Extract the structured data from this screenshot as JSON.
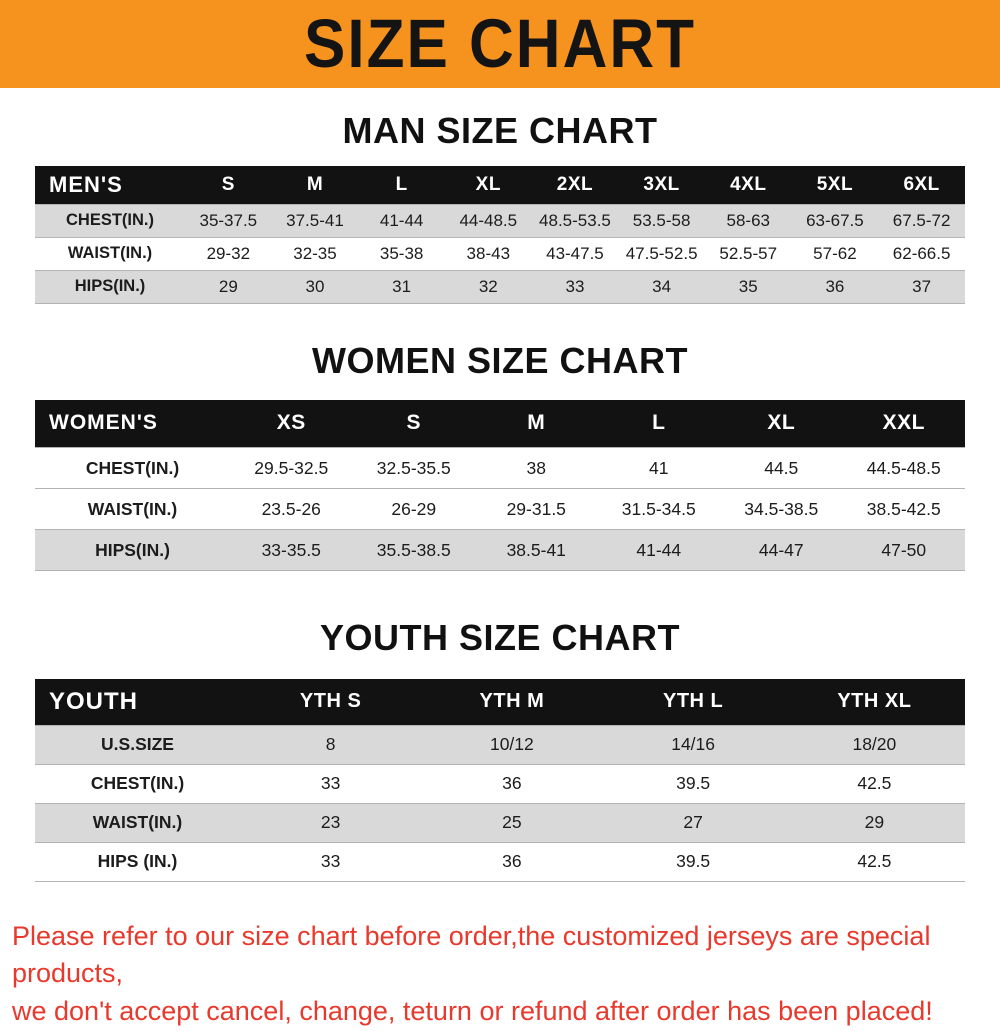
{
  "banner": {
    "title": "SIZE CHART"
  },
  "colors": {
    "banner_bg": "#f6921e",
    "table_header_bg": "#121212",
    "table_header_text": "#ffffff",
    "shaded_row_bg": "#d9d9d9",
    "footer_text": "#e8392c"
  },
  "sections": [
    {
      "id": "men",
      "heading": "MAN SIZE CHART",
      "header_row": [
        "MEN'S",
        "S",
        "M",
        "L",
        "XL",
        "2XL",
        "3XL",
        "4XL",
        "5XL",
        "6XL"
      ],
      "rows": [
        {
          "label": "CHEST(IN.)",
          "shade": true,
          "values": [
            "35-37.5",
            "37.5-41",
            "41-44",
            "44-48.5",
            "48.5-53.5",
            "53.5-58",
            "58-63",
            "63-67.5",
            "67.5-72"
          ]
        },
        {
          "label": "WAIST(IN.)",
          "shade": false,
          "values": [
            "29-32",
            "32-35",
            "35-38",
            "38-43",
            "43-47.5",
            "47.5-52.5",
            "52.5-57",
            "57-62",
            "62-66.5"
          ]
        },
        {
          "label": "HIPS(IN.)",
          "shade": true,
          "values": [
            "29",
            "30",
            "31",
            "32",
            "33",
            "34",
            "35",
            "36",
            "37"
          ]
        }
      ]
    },
    {
      "id": "women",
      "heading": "WOMEN SIZE CHART",
      "header_row": [
        "WOMEN'S",
        "XS",
        "S",
        "M",
        "L",
        "XL",
        "XXL"
      ],
      "rows": [
        {
          "label": "CHEST(IN.)",
          "shade": false,
          "values": [
            "29.5-32.5",
            "32.5-35.5",
            "38",
            "41",
            "44.5",
            "44.5-48.5"
          ]
        },
        {
          "label": "WAIST(IN.)",
          "shade": false,
          "values": [
            "23.5-26",
            "26-29",
            "29-31.5",
            "31.5-34.5",
            "34.5-38.5",
            "38.5-42.5"
          ]
        },
        {
          "label": "HIPS(IN.)",
          "shade": true,
          "values": [
            "33-35.5",
            "35.5-38.5",
            "38.5-41",
            "41-44",
            "44-47",
            "47-50"
          ]
        }
      ]
    },
    {
      "id": "youth",
      "heading": "YOUTH SIZE CHART",
      "header_row": [
        "YOUTH",
        "YTH S",
        "YTH M",
        "YTH L",
        "YTH XL"
      ],
      "rows": [
        {
          "label": "U.S.SIZE",
          "shade": true,
          "values": [
            "8",
            "10/12",
            "14/16",
            "18/20"
          ]
        },
        {
          "label": "CHEST(IN.)",
          "shade": false,
          "values": [
            "33",
            "36",
            "39.5",
            "42.5"
          ]
        },
        {
          "label": "WAIST(IN.)",
          "shade": true,
          "values": [
            "23",
            "25",
            "27",
            "29"
          ]
        },
        {
          "label": "HIPS (IN.)",
          "shade": false,
          "values": [
            "33",
            "36",
            "39.5",
            "42.5"
          ]
        }
      ]
    }
  ],
  "footer": {
    "lines": [
      "Please refer to our size chart before order,the customized jerseys are special products,",
      "we don't accept cancel, change, teturn or refund after order has been placed!"
    ]
  }
}
